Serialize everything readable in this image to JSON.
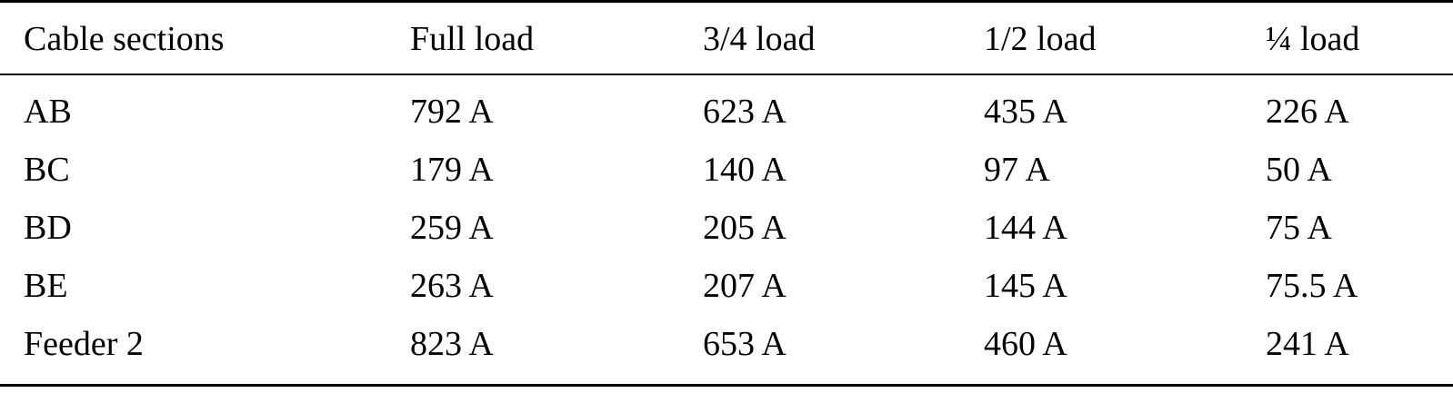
{
  "table": {
    "header": [
      "Cable sections",
      "Full load",
      "3/4 load",
      "1/2 load",
      "¼ load"
    ],
    "rows": [
      [
        "AB",
        "792 A",
        "623 A",
        "435 A",
        "226 A"
      ],
      [
        "BC",
        "179 A",
        "140 A",
        "97 A",
        "50 A"
      ],
      [
        "BD",
        "259 A",
        "205 A",
        "144 A",
        "75 A"
      ],
      [
        "BE",
        "263 A",
        "207 A",
        "145 A",
        "75.5 A"
      ],
      [
        "Feeder 2",
        "823 A",
        "653 A",
        "460 A",
        "241 A"
      ]
    ]
  }
}
